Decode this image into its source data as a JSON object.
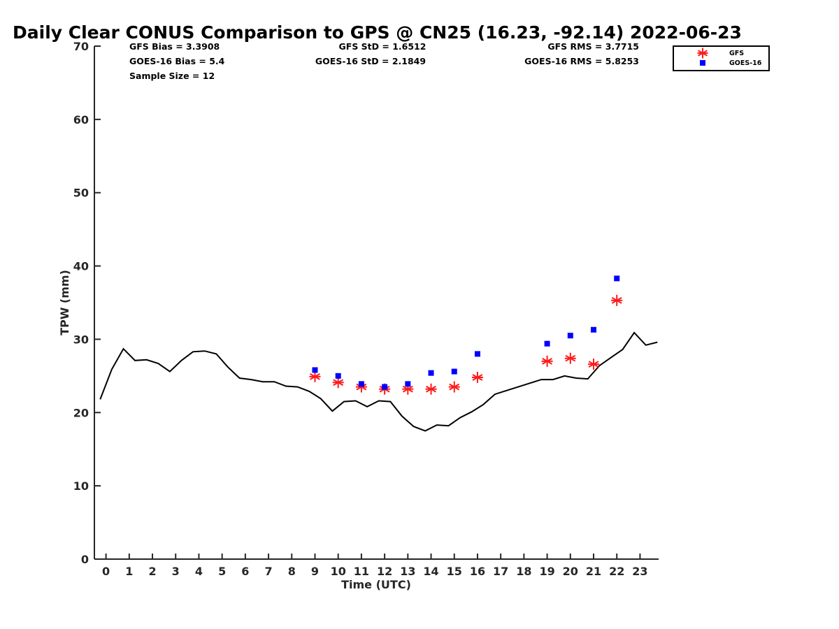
{
  "chart_data": {
    "type": "line",
    "title": "Daily Clear CONUS Comparison to GPS @ CN25 (16.23, -92.14) 2022-06-23",
    "xlabel": "Time (UTC)",
    "ylabel": "TPW (mm)",
    "xlim": [
      -0.5,
      23.8
    ],
    "ylim": [
      0,
      70
    ],
    "xticks": [
      "0",
      "1",
      "2",
      "3",
      "4",
      "5",
      "6",
      "7",
      "8",
      "9",
      "10",
      "11",
      "12",
      "13",
      "14",
      "15",
      "16",
      "17",
      "18",
      "19",
      "20",
      "21",
      "22",
      "23"
    ],
    "yticks": [
      "0",
      "10",
      "20",
      "30",
      "40",
      "50",
      "60",
      "70"
    ],
    "grid": false,
    "legend_position": "top-right",
    "stats": {
      "gfs_bias": "GFS Bias = 3.3908",
      "goes_bias": "GOES-16 Bias = 5.4",
      "sample_size": "Sample Size = 12",
      "gfs_std": "GFS StD = 1.6512",
      "goes_std": "GOES-16 StD = 2.1849",
      "gfs_rms": "GFS RMS = 3.7715",
      "goes_rms": "GOES-16 RMS = 5.8253"
    },
    "series": [
      {
        "kind": "line",
        "color": "#000000",
        "x": [
          -0.25,
          0.25,
          0.75,
          1.25,
          1.75,
          2.25,
          2.75,
          3.25,
          3.75,
          4.25,
          4.75,
          5.25,
          5.75,
          6.25,
          6.75,
          7.25,
          7.75,
          8.25,
          8.75,
          9.25,
          9.75,
          10.25,
          10.75,
          11.25,
          11.75,
          12.25,
          12.75,
          13.25,
          13.75,
          14.25,
          14.75,
          15.25,
          15.75,
          16.25,
          16.75,
          17.25,
          17.75,
          18.25,
          18.75,
          19.25,
          19.75,
          20.25,
          20.75,
          21.25,
          21.75,
          22.25,
          22.75,
          23.25,
          23.75
        ],
        "y": [
          21.8,
          25.9,
          28.7,
          27.1,
          27.2,
          26.7,
          25.6,
          27.1,
          28.3,
          28.4,
          28.0,
          26.2,
          24.7,
          24.5,
          24.2,
          24.2,
          23.6,
          23.5,
          22.9,
          21.9,
          20.2,
          21.5,
          21.6,
          20.8,
          21.6,
          21.5,
          19.5,
          18.1,
          17.5,
          18.3,
          18.2,
          19.3,
          20.1,
          21.1,
          22.5,
          23.0,
          23.5,
          24.0,
          24.5,
          24.5,
          25.0,
          24.7,
          24.6,
          26.4,
          27.5,
          28.6,
          30.9,
          29.2,
          29.6
        ]
      },
      {
        "name": "GFS",
        "kind": "marker-asterisk",
        "color": "#ff1a1a",
        "x": [
          9,
          10,
          11,
          12,
          13,
          14,
          15,
          16,
          19,
          20,
          21,
          22
        ],
        "y": [
          24.9,
          24.1,
          23.5,
          23.2,
          23.2,
          23.2,
          23.5,
          24.8,
          27.0,
          27.4,
          26.6,
          35.3
        ]
      },
      {
        "name": "GOES-16",
        "kind": "marker-square",
        "color": "#0000ff",
        "x": [
          9,
          10,
          11,
          12,
          13,
          14,
          15,
          16,
          19,
          20,
          21,
          22
        ],
        "y": [
          25.8,
          25.0,
          23.9,
          23.5,
          23.9,
          25.4,
          25.6,
          28.0,
          29.4,
          30.5,
          31.3,
          38.3
        ]
      }
    ]
  }
}
